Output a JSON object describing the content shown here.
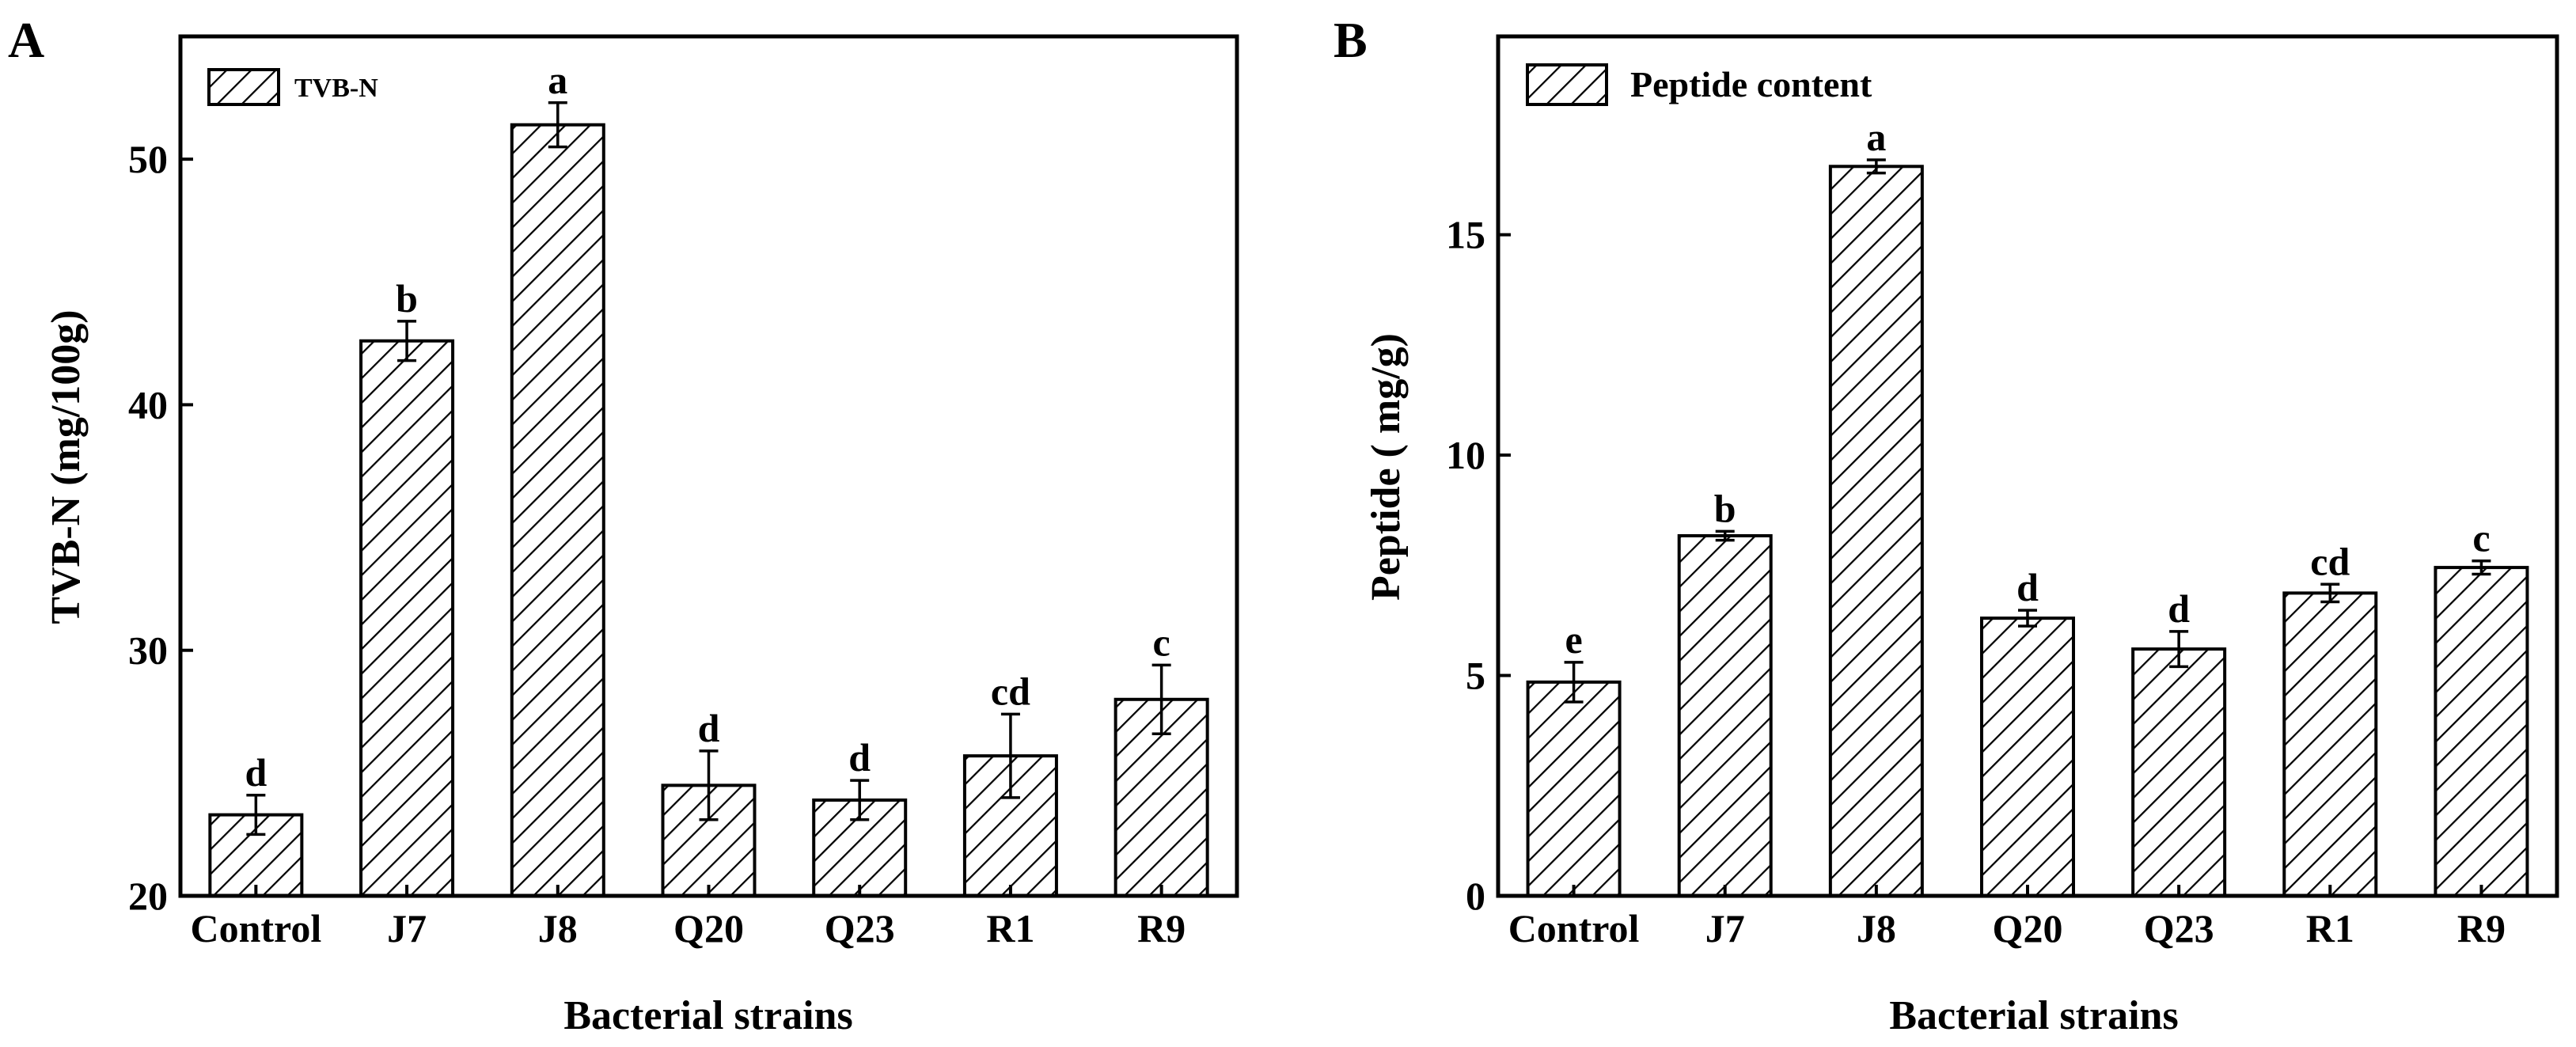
{
  "chart_data": [
    {
      "type": "bar",
      "panel_label": "A",
      "categories": [
        "Control",
        "J7",
        "J8",
        "Q20",
        "Q23",
        "R1",
        "R9"
      ],
      "series": [
        {
          "name": "TVB-N",
          "values": [
            23.3,
            42.6,
            51.4,
            24.5,
            23.9,
            25.7,
            28.0
          ],
          "errors": [
            0.8,
            0.8,
            0.9,
            1.4,
            0.8,
            1.7,
            1.4
          ],
          "significance": [
            "d",
            "b",
            "a",
            "d",
            "d",
            "cd",
            "c"
          ]
        }
      ],
      "xlabel": "Bacterial strains",
      "ylabel": "TVB-N (mg/100g)",
      "ylim": [
        20,
        55
      ],
      "yticks": [
        20,
        30,
        40,
        50
      ],
      "legend": {
        "label": "TVB-N",
        "position": "top-left"
      },
      "grid": false
    },
    {
      "type": "bar",
      "panel_label": "B",
      "categories": [
        "Control",
        "J7",
        "J8",
        "Q20",
        "Q23",
        "R1",
        "R9"
      ],
      "series": [
        {
          "name": "Peptide content",
          "values": [
            4.85,
            8.17,
            16.55,
            6.3,
            5.6,
            6.87,
            7.45
          ],
          "errors": [
            0.45,
            0.1,
            0.15,
            0.18,
            0.4,
            0.2,
            0.15
          ],
          "significance": [
            "e",
            "b",
            "a",
            "d",
            "d",
            "cd",
            "c"
          ]
        }
      ],
      "xlabel": "Bacterial strains",
      "ylabel": "Peptide ( mg/g)",
      "ylim": [
        0,
        19.5
      ],
      "yticks": [
        0,
        5,
        10,
        15
      ],
      "legend": {
        "label": "Peptide content",
        "position": "top-left"
      },
      "grid": false
    }
  ]
}
